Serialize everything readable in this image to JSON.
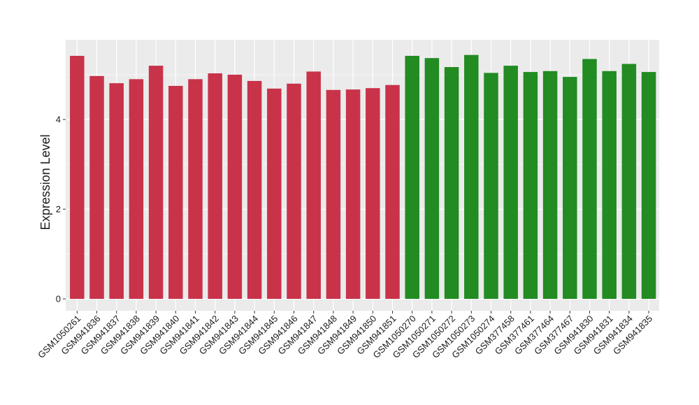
{
  "chart_data": {
    "type": "bar",
    "title": "",
    "xlabel": "",
    "ylabel": "Expression Level",
    "ylim": [
      0,
      5.7
    ],
    "yticks": [
      0,
      2,
      4
    ],
    "grid": true,
    "legend": "none",
    "categories": [
      "GSM1050261",
      "GSM941836",
      "GSM941837",
      "GSM941838",
      "GSM941839",
      "GSM941840",
      "GSM941841",
      "GSM941842",
      "GSM941843",
      "GSM941844",
      "GSM941845",
      "GSM941846",
      "GSM941847",
      "GSM941848",
      "GSM941849",
      "GSM941850",
      "GSM941851",
      "GSM1050270",
      "GSM1050271",
      "GSM1050272",
      "GSM1050273",
      "GSM1050274",
      "GSM377458",
      "GSM377461",
      "GSM377464",
      "GSM377467",
      "GSM941830",
      "GSM941831",
      "GSM941834",
      "GSM941835"
    ],
    "values": [
      5.42,
      4.97,
      4.81,
      4.9,
      5.2,
      4.75,
      4.9,
      5.03,
      5.0,
      4.86,
      4.69,
      4.8,
      5.07,
      4.66,
      4.67,
      4.7,
      4.77,
      5.42,
      5.37,
      5.17,
      5.44,
      5.04,
      5.2,
      5.06,
      5.08,
      4.95,
      5.35,
      5.08,
      5.24,
      5.06
    ],
    "groups": [
      0,
      0,
      0,
      0,
      0,
      0,
      0,
      0,
      0,
      0,
      0,
      0,
      0,
      0,
      0,
      0,
      0,
      1,
      1,
      1,
      1,
      1,
      1,
      1,
      1,
      1,
      1,
      1,
      1,
      1
    ],
    "group_colors": [
      "#c8334a",
      "#228b22"
    ],
    "panel_background": "#ebebeb",
    "grid_color": "#ffffff"
  }
}
